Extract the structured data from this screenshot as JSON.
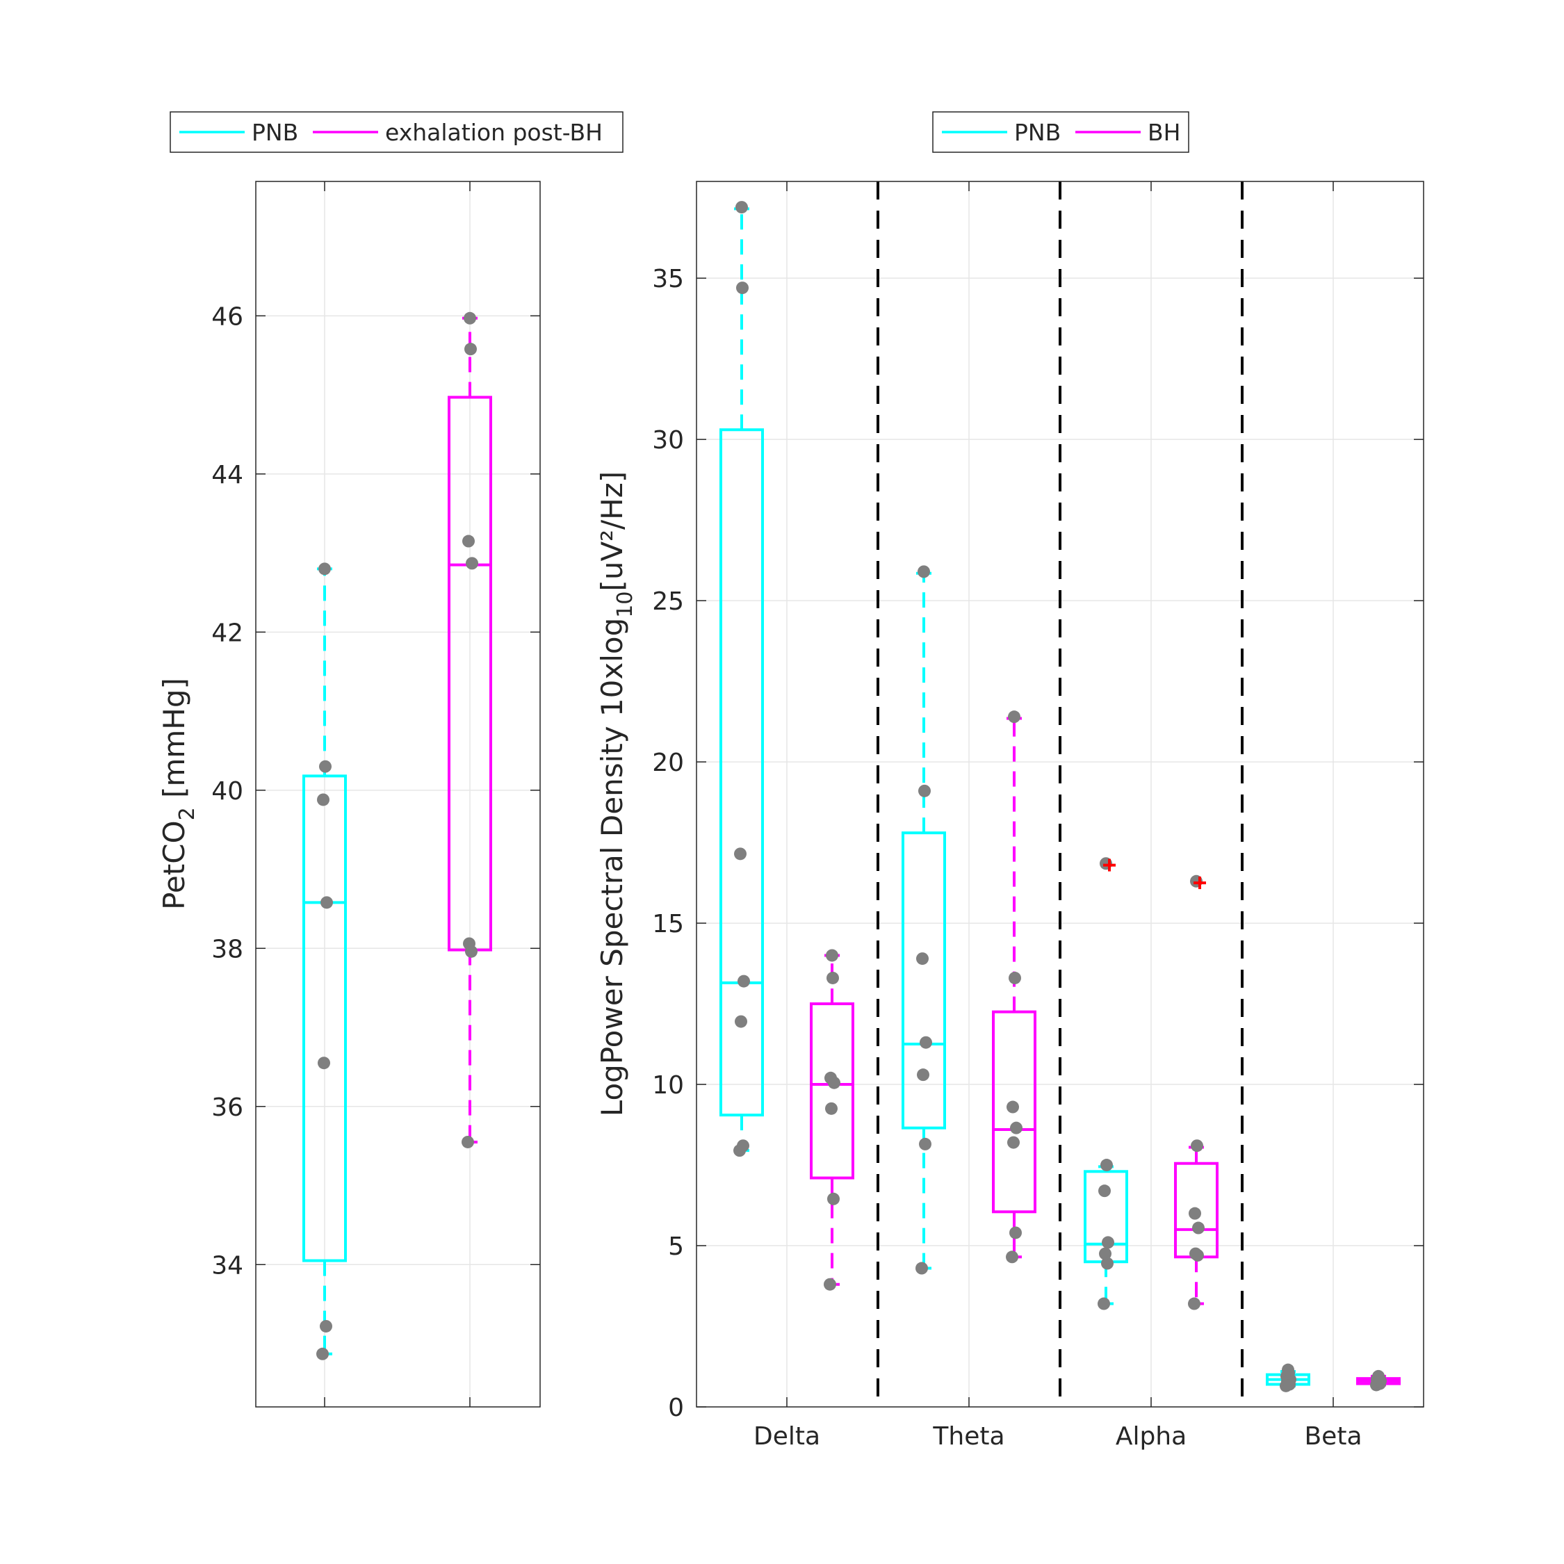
{
  "chart_data": [
    {
      "type": "box",
      "ylabel": "PetCO",
      "ylabel_sub": "2",
      "ylabel_unit": " [mmHg]",
      "ylim": [
        32.2,
        47.7
      ],
      "yticks": [
        34,
        36,
        38,
        40,
        42,
        44,
        46
      ],
      "legend": {
        "placement": "top",
        "entries": [
          {
            "label": "PNB",
            "color": "#00FFFF"
          },
          {
            "label": "exhalation post-BH",
            "color": "#FF00FF"
          }
        ]
      },
      "boxes": [
        {
          "name": "PNB",
          "color": "#00FFFF",
          "q1": 34.05,
          "median": 38.58,
          "q3": 40.18,
          "whisker_low": 32.87,
          "whisker_high": 42.8,
          "points": [
            32.87,
            33.22,
            36.55,
            38.58,
            39.88,
            40.3,
            42.8
          ]
        },
        {
          "name": "exhalation post-BH",
          "color": "#FF00FF",
          "q1": 37.98,
          "median": 42.85,
          "q3": 44.97,
          "whisker_low": 35.55,
          "whisker_high": 45.97,
          "points": [
            35.55,
            37.96,
            38.06,
            42.87,
            43.15,
            45.58,
            45.97
          ]
        }
      ]
    },
    {
      "type": "box",
      "ylabel": "LogPower Spectral Density 10xlog",
      "ylabel_sub": "10",
      "ylabel_unit": "[uV²/Hz]",
      "ylim": [
        0,
        38
      ],
      "yticks": [
        0,
        5,
        10,
        15,
        20,
        25,
        30,
        35
      ],
      "categories": [
        "Delta",
        "Theta",
        "Alpha",
        "Beta"
      ],
      "legend": {
        "placement": "top",
        "entries": [
          {
            "label": "PNB",
            "color": "#00FFFF"
          },
          {
            "label": "BH",
            "color": "#FF00FF"
          }
        ]
      },
      "outlier_color": "#FF0000",
      "groups": [
        {
          "category": "Delta",
          "PNB": {
            "q1": 9.05,
            "median": 13.15,
            "q3": 30.3,
            "whisker_low": 7.95,
            "whisker_high": 37.15,
            "outliers": [],
            "points": [
              7.95,
              8.1,
              11.95,
              13.2,
              17.15,
              34.7,
              37.2
            ]
          },
          "BH": {
            "q1": 7.1,
            "median": 10.0,
            "q3": 12.5,
            "whisker_low": 3.8,
            "whisker_high": 14.0,
            "outliers": [],
            "points": [
              3.8,
              6.45,
              9.25,
              10.05,
              10.2,
              13.3,
              14.0
            ]
          }
        },
        {
          "category": "Theta",
          "PNB": {
            "q1": 8.65,
            "median": 11.25,
            "q3": 17.8,
            "whisker_low": 4.3,
            "whisker_high": 25.85,
            "outliers": [],
            "points": [
              4.3,
              8.15,
              10.3,
              11.3,
              13.9,
              19.1,
              25.9
            ]
          },
          "BH": {
            "q1": 6.05,
            "median": 8.6,
            "q3": 12.25,
            "whisker_low": 4.65,
            "whisker_high": 21.35,
            "outliers": [],
            "points": [
              4.65,
              5.4,
              8.2,
              8.65,
              9.3,
              13.3,
              21.4
            ]
          }
        },
        {
          "category": "Alpha",
          "PNB": {
            "q1": 4.5,
            "median": 5.05,
            "q3": 7.3,
            "whisker_low": 3.2,
            "whisker_high": 7.45,
            "outliers": [
              16.8
            ],
            "points": [
              3.2,
              4.45,
              4.75,
              5.1,
              6.7,
              7.5,
              16.85
            ]
          },
          "BH": {
            "q1": 4.65,
            "median": 5.5,
            "q3": 7.55,
            "whisker_low": 3.2,
            "whisker_high": 8.05,
            "outliers": [
              16.25
            ],
            "points": [
              3.2,
              4.7,
              4.75,
              5.55,
              6.0,
              8.1,
              16.3
            ]
          }
        },
        {
          "category": "Beta",
          "PNB": {
            "q1": 0.7,
            "median": 0.85,
            "q3": 1.0,
            "whisker_low": 0.65,
            "whisker_high": 1.1,
            "outliers": [],
            "points": [
              0.65,
              0.7,
              0.8,
              0.85,
              0.95,
              1.05,
              1.15
            ]
          },
          "BH": {
            "q1": 0.72,
            "median": 0.8,
            "q3": 0.88,
            "whisker_low": 0.68,
            "whisker_high": 0.95,
            "outliers": [],
            "points": [
              0.68,
              0.72,
              0.78,
              0.8,
              0.85,
              0.9,
              0.95
            ]
          }
        }
      ]
    }
  ]
}
